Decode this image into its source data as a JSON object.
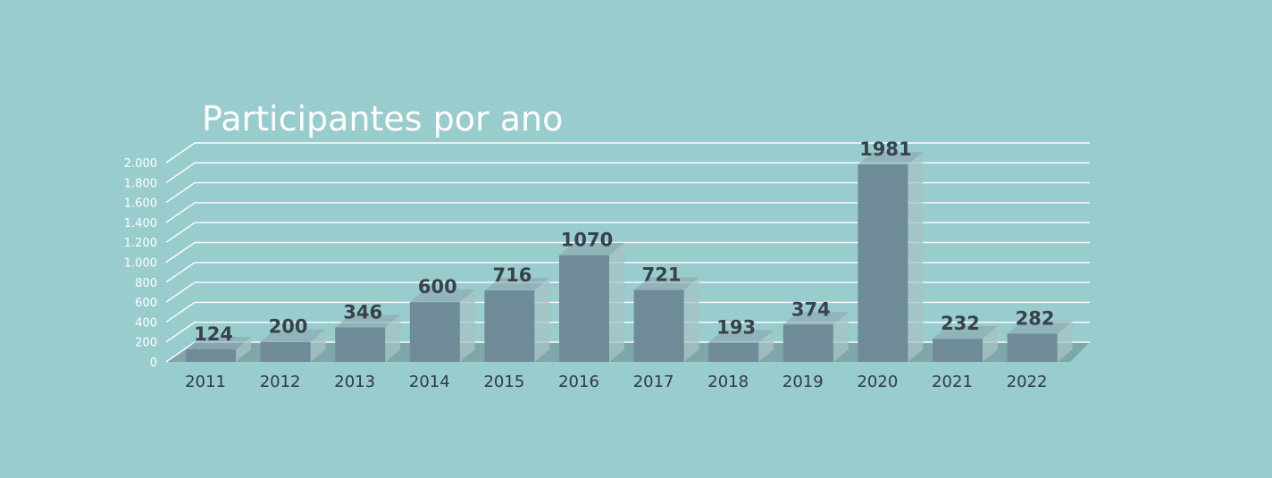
{
  "chart_data": {
    "type": "bar",
    "title": "Participantes por ano",
    "xlabel": "",
    "ylabel": "",
    "categories": [
      "2011",
      "2012",
      "2013",
      "2014",
      "2015",
      "2016",
      "2017",
      "2018",
      "2019",
      "2020",
      "2021",
      "2022"
    ],
    "values": [
      124,
      200,
      346,
      600,
      716,
      1070,
      721,
      193,
      374,
      1981,
      232,
      282
    ],
    "data_labels": [
      "124",
      "200",
      "346",
      "600",
      "716",
      "1070",
      "721",
      "193",
      "374",
      "1981",
      "232",
      "282"
    ],
    "ylim": [
      0,
      2000
    ],
    "yticks": [
      0,
      200,
      400,
      600,
      800,
      1000,
      1200,
      1400,
      1600,
      1800,
      2000
    ],
    "ytick_labels": [
      "0",
      "200",
      "400",
      "600",
      "800",
      "1.000",
      "1.200",
      "1.400",
      "1.600",
      "1.800",
      "2.000"
    ],
    "grid": true,
    "legend": "none",
    "style": "3d",
    "colors": {
      "background": "#99cccc",
      "bar": "#6f8b98",
      "bar_top": "#8aa3ae",
      "bar_side": "#a7c3c6",
      "floor": "#7fa6a8",
      "grid": "#ffffff",
      "title": "#ffffff",
      "label": "#38424c"
    }
  }
}
